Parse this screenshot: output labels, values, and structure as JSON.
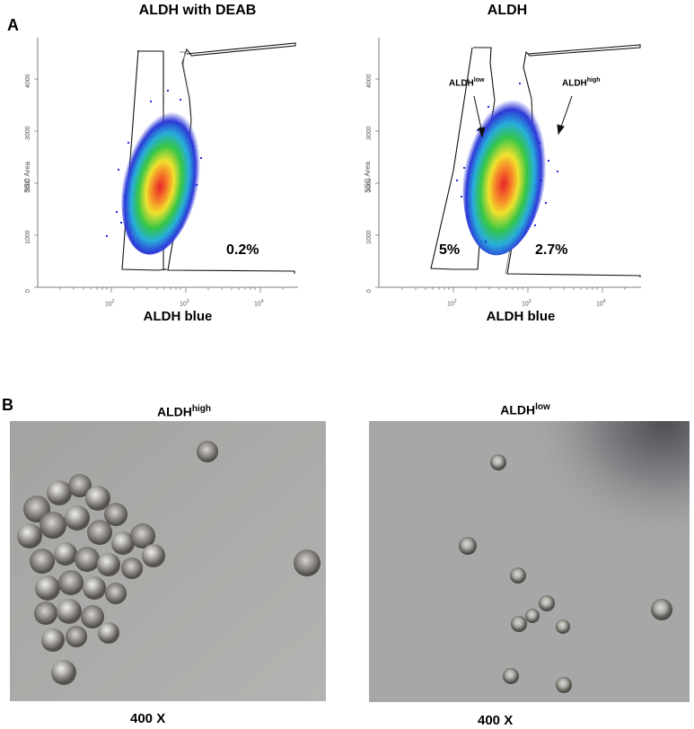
{
  "panel_a": {
    "letter": "A",
    "plots": [
      {
        "title": "ALDH with DEAB",
        "xlabel": "ALDH blue",
        "ylabel": "SSC Area",
        "y_ticks": [
          "0",
          "1000",
          "2000",
          "3000",
          "4000"
        ],
        "x_ticks": [
          {
            "base": "10",
            "exp": "2"
          },
          {
            "base": "10",
            "exp": "3"
          },
          {
            "base": "10",
            "exp": "4"
          }
        ],
        "gate_percentages": [
          "0.2%"
        ]
      },
      {
        "title": "ALDH",
        "xlabel": "ALDH blue",
        "ylabel": "SSC Area",
        "y_ticks": [
          "0",
          "1000",
          "2000",
          "3000",
          "4000"
        ],
        "x_ticks": [
          {
            "base": "10",
            "exp": "2"
          },
          {
            "base": "10",
            "exp": "3"
          },
          {
            "base": "10",
            "exp": "4"
          }
        ],
        "gate_percentages": [
          "5%",
          "2.7%"
        ],
        "annotations": [
          {
            "base": "ALDH",
            "sup": "low"
          },
          {
            "base": "ALDH",
            "sup": "high"
          }
        ]
      }
    ]
  },
  "panel_b": {
    "letter": "B",
    "images": [
      {
        "label_base": "ALDH",
        "label_sup": "high",
        "magnification": "400 X"
      },
      {
        "label_base": "ALDH",
        "label_sup": "low",
        "magnification": "400 X"
      }
    ]
  },
  "colors": {
    "gate_outline": "#1a1a1a",
    "density_low": "#1f2bd6",
    "density_mid": "#27c23a",
    "density_high": "#f0e020",
    "density_peak": "#e8141a",
    "micrograph_bg": "#a9aaa7"
  }
}
